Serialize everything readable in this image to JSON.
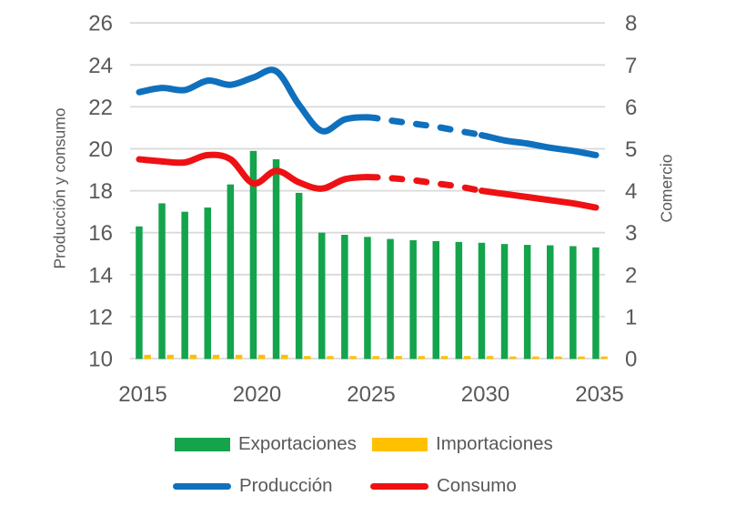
{
  "colors": {
    "background": "#FFFFFF",
    "grid": "#D9D9D9",
    "text": "#595959",
    "exportaciones": "#14A44C",
    "importaciones": "#FFC000",
    "produccion": "#0F70BD",
    "consumo": "#EE1114"
  },
  "chart_data": {
    "type": "combo-bar-line",
    "title": "",
    "x": [
      2015,
      2016,
      2017,
      2018,
      2019,
      2020,
      2021,
      2022,
      2023,
      2024,
      2025,
      2026,
      2027,
      2028,
      2029,
      2030,
      2031,
      2032,
      2033,
      2034,
      2035
    ],
    "x_ticks": [
      2015,
      2020,
      2025,
      2030,
      2035
    ],
    "left_axis": {
      "label": "Producción y consumo",
      "min": 10,
      "max": 26,
      "step": 2,
      "ticks": [
        26,
        24,
        22,
        20,
        18,
        16,
        14,
        12,
        10
      ]
    },
    "right_axis": {
      "label": "Comercio",
      "min": 0,
      "max": 8,
      "step": 1,
      "ticks": [
        8,
        7,
        6,
        5,
        4,
        3,
        2,
        1,
        0
      ]
    },
    "grid": true,
    "legend_position": "bottom",
    "projection_note": "lines drawn dashed between 2025 and 2030",
    "series": [
      {
        "name": "Exportaciones",
        "type": "bar",
        "axis": "right",
        "color": "#14A44C",
        "values": [
          3.15,
          3.7,
          3.5,
          3.6,
          4.15,
          4.95,
          4.75,
          3.95,
          3.0,
          2.95,
          2.9,
          2.85,
          2.82,
          2.8,
          2.78,
          2.76,
          2.73,
          2.71,
          2.7,
          2.68,
          2.65
        ]
      },
      {
        "name": "Importaciones",
        "type": "bar",
        "axis": "right",
        "color": "#FFC000",
        "values": [
          0.09,
          0.09,
          0.09,
          0.09,
          0.09,
          0.09,
          0.09,
          0.06,
          0.06,
          0.06,
          0.06,
          0.06,
          0.06,
          0.06,
          0.06,
          0.06,
          0.05,
          0.05,
          0.05,
          0.05,
          0.05
        ]
      },
      {
        "name": "Producción",
        "type": "line",
        "axis": "left",
        "color": "#0F70BD",
        "dashed_between": [
          2025,
          2030
        ],
        "values": [
          22.7,
          22.9,
          22.8,
          23.25,
          23.05,
          23.4,
          23.7,
          22.1,
          20.85,
          21.4,
          21.5,
          21.35,
          21.2,
          21.05,
          20.85,
          20.65,
          20.4,
          20.25,
          20.05,
          19.9,
          19.7
        ]
      },
      {
        "name": "Consumo",
        "type": "line",
        "axis": "left",
        "color": "#EE1114",
        "dashed_between": [
          2025,
          2030
        ],
        "values": [
          19.5,
          19.4,
          19.35,
          19.7,
          19.5,
          18.35,
          18.95,
          18.4,
          18.1,
          18.55,
          18.65,
          18.6,
          18.5,
          18.35,
          18.2,
          18.0,
          17.85,
          17.7,
          17.55,
          17.4,
          17.2
        ]
      }
    ]
  }
}
